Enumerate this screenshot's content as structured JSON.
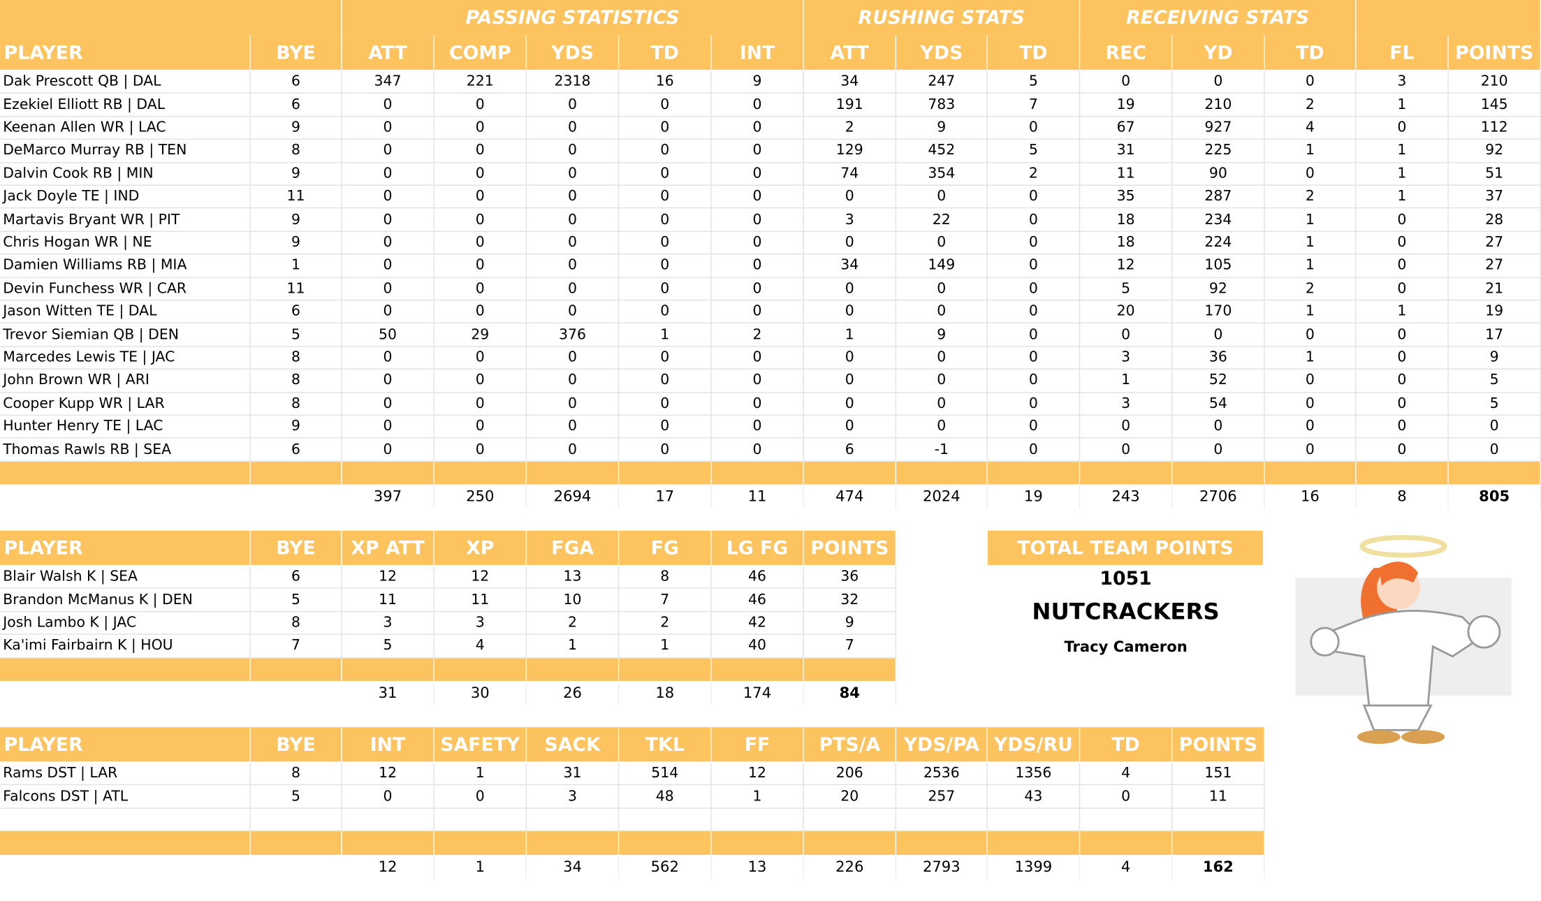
{
  "passing": {
    "groups": [
      "PASSING STATISTICS",
      "RUSHING STATS",
      "RECEIVING STATS"
    ],
    "columns": [
      "PLAYER",
      "BYE",
      "ATT",
      "COMP",
      "YDS",
      "TD",
      "INT",
      "ATT",
      "YDS",
      "TD",
      "REC",
      "YD",
      "TD",
      "FL",
      "POINTS"
    ],
    "rows": [
      [
        "Dak Prescott QB | DAL",
        6,
        347,
        221,
        2318,
        16,
        9,
        34,
        247,
        5,
        0,
        0,
        0,
        3,
        210
      ],
      [
        "Ezekiel Elliott RB | DAL",
        6,
        0,
        0,
        0,
        0,
        0,
        191,
        783,
        7,
        19,
        210,
        2,
        1,
        145
      ],
      [
        "Keenan Allen WR | LAC",
        9,
        0,
        0,
        0,
        0,
        0,
        2,
        9,
        0,
        67,
        927,
        4,
        0,
        112
      ],
      [
        "DeMarco Murray RB | TEN",
        8,
        0,
        0,
        0,
        0,
        0,
        129,
        452,
        5,
        31,
        225,
        1,
        1,
        92
      ],
      [
        "Dalvin Cook RB | MIN",
        9,
        0,
        0,
        0,
        0,
        0,
        74,
        354,
        2,
        11,
        90,
        0,
        1,
        51
      ],
      [
        "Jack Doyle TE | IND",
        11,
        0,
        0,
        0,
        0,
        0,
        0,
        0,
        0,
        35,
        287,
        2,
        1,
        37
      ],
      [
        "Martavis Bryant WR | PIT",
        9,
        0,
        0,
        0,
        0,
        0,
        3,
        22,
        0,
        18,
        234,
        1,
        0,
        28
      ],
      [
        "Chris Hogan WR | NE",
        9,
        0,
        0,
        0,
        0,
        0,
        0,
        0,
        0,
        18,
        224,
        1,
        0,
        27
      ],
      [
        "Damien Williams RB | MIA",
        1,
        0,
        0,
        0,
        0,
        0,
        34,
        149,
        0,
        12,
        105,
        1,
        0,
        27
      ],
      [
        "Devin Funchess WR | CAR",
        11,
        0,
        0,
        0,
        0,
        0,
        0,
        0,
        0,
        5,
        92,
        2,
        0,
        21
      ],
      [
        "Jason Witten TE | DAL",
        6,
        0,
        0,
        0,
        0,
        0,
        0,
        0,
        0,
        20,
        170,
        1,
        1,
        19
      ],
      [
        "Trevor Siemian QB | DEN",
        5,
        50,
        29,
        376,
        1,
        2,
        1,
        9,
        0,
        0,
        0,
        0,
        0,
        17
      ],
      [
        "Marcedes Lewis TE | JAC",
        8,
        0,
        0,
        0,
        0,
        0,
        0,
        0,
        0,
        3,
        36,
        1,
        0,
        9
      ],
      [
        "John Brown WR | ARI",
        8,
        0,
        0,
        0,
        0,
        0,
        0,
        0,
        0,
        1,
        52,
        0,
        0,
        5
      ],
      [
        "Cooper Kupp WR | LAR",
        8,
        0,
        0,
        0,
        0,
        0,
        0,
        0,
        0,
        3,
        54,
        0,
        0,
        5
      ],
      [
        "Hunter Henry TE | LAC",
        9,
        0,
        0,
        0,
        0,
        0,
        0,
        0,
        0,
        0,
        0,
        0,
        0,
        0
      ],
      [
        "Thomas Rawls RB | SEA",
        6,
        0,
        0,
        0,
        0,
        0,
        6,
        -1,
        0,
        0,
        0,
        0,
        0,
        0
      ]
    ],
    "totals": [
      397,
      250,
      2694,
      17,
      11,
      474,
      2024,
      19,
      243,
      2706,
      16,
      8,
      805
    ]
  },
  "kicking": {
    "columns": [
      "PLAYER",
      "BYE",
      "XP ATT",
      "XP",
      "FGA",
      "FG",
      "LG FG",
      "POINTS"
    ],
    "rows": [
      [
        "Blair Walsh K | SEA",
        6,
        12,
        12,
        13,
        8,
        46,
        36
      ],
      [
        "Brandon McManus K | DEN",
        5,
        11,
        11,
        10,
        7,
        46,
        32
      ],
      [
        "Josh Lambo K | JAC",
        8,
        3,
        3,
        2,
        2,
        42,
        9
      ],
      [
        "Ka'imi Fairbairn K | HOU",
        7,
        5,
        4,
        1,
        1,
        40,
        7
      ]
    ],
    "totals": [
      31,
      30,
      26,
      18,
      174,
      84
    ]
  },
  "defense": {
    "columns": [
      "PLAYER",
      "BYE",
      "INT",
      "SAFETY",
      "SACK",
      "TKL",
      "FF",
      "PTS/A",
      "YDS/PA",
      "YDS/RU",
      "TD",
      "POINTS"
    ],
    "rows": [
      [
        "Rams DST | LAR",
        8,
        12,
        1,
        31,
        514,
        12,
        206,
        2536,
        1356,
        4,
        151
      ],
      [
        "Falcons DST | ATL",
        5,
        0,
        0,
        3,
        48,
        1,
        20,
        257,
        43,
        0,
        11
      ]
    ],
    "totals": [
      12,
      1,
      34,
      562,
      13,
      226,
      2793,
      1399,
      4,
      162
    ]
  },
  "team": {
    "title": "TOTAL TEAM POINTS",
    "points": 1051,
    "name": "NUTCRACKERS",
    "owner": "Tracy Cameron"
  }
}
